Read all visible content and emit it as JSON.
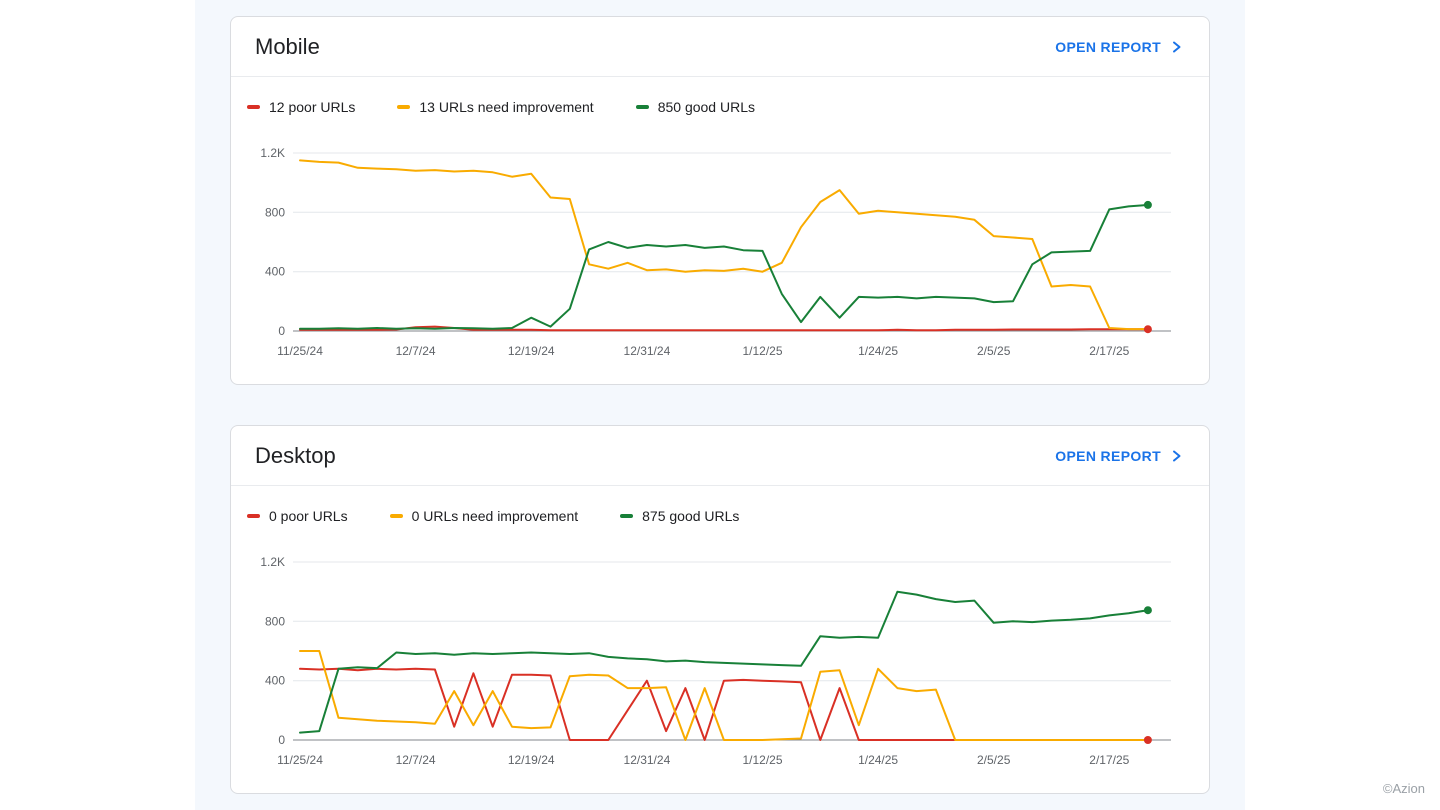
{
  "page": {
    "watermark": "©Azion"
  },
  "colors": {
    "poor": "#d93025",
    "improvement": "#f9ab00",
    "good": "#188038",
    "link": "#1a73e8"
  },
  "cards": [
    {
      "title": "Mobile",
      "open_report": "OPEN REPORT",
      "legend": [
        {
          "label": "12 poor URLs",
          "color": "#d93025"
        },
        {
          "label": "13 URLs need improvement",
          "color": "#f9ab00"
        },
        {
          "label": "850 good URLs",
          "color": "#188038"
        }
      ]
    },
    {
      "title": "Desktop",
      "open_report": "OPEN REPORT",
      "legend": [
        {
          "label": "0 poor URLs",
          "color": "#d93025"
        },
        {
          "label": "0 URLs need improvement",
          "color": "#f9ab00"
        },
        {
          "label": "875 good URLs",
          "color": "#188038"
        }
      ]
    }
  ],
  "chart_data": [
    {
      "type": "line",
      "title": "Mobile",
      "grid": true,
      "legend_position": "top",
      "ylim": [
        0,
        1200
      ],
      "yticks": [
        {
          "value": 0,
          "label": "0"
        },
        {
          "value": 400,
          "label": "400"
        },
        {
          "value": 800,
          "label": "800"
        },
        {
          "value": 1200,
          "label": "1.2K"
        }
      ],
      "xticks": [
        {
          "index": 0,
          "label": "11/25/24"
        },
        {
          "index": 6,
          "label": "12/7/24"
        },
        {
          "index": 12,
          "label": "12/19/24"
        },
        {
          "index": 18,
          "label": "12/31/24"
        },
        {
          "index": 24,
          "label": "1/12/25"
        },
        {
          "index": 30,
          "label": "1/24/25"
        },
        {
          "index": 36,
          "label": "2/5/25"
        },
        {
          "index": 42,
          "label": "2/17/25"
        }
      ],
      "series": [
        {
          "name": "poor URLs",
          "color": "#d93025",
          "final_value": 12,
          "end_dot": true,
          "values": [
            8,
            8,
            8,
            8,
            8,
            10,
            25,
            30,
            20,
            8,
            8,
            8,
            8,
            5,
            5,
            5,
            5,
            5,
            5,
            5,
            5,
            5,
            5,
            5,
            5,
            5,
            5,
            5,
            5,
            5,
            5,
            8,
            5,
            5,
            8,
            8,
            8,
            10,
            10,
            10,
            10,
            12,
            12,
            12,
            12
          ]
        },
        {
          "name": "URLs need improvement",
          "color": "#f9ab00",
          "final_value": 13,
          "end_dot": false,
          "values": [
            1150,
            1140,
            1135,
            1100,
            1095,
            1090,
            1080,
            1085,
            1075,
            1080,
            1070,
            1040,
            1060,
            900,
            890,
            450,
            420,
            460,
            410,
            415,
            400,
            410,
            405,
            420,
            400,
            460,
            700,
            870,
            950,
            790,
            810,
            800,
            790,
            780,
            770,
            750,
            640,
            630,
            620,
            300,
            310,
            300,
            20,
            13,
            13
          ]
        },
        {
          "name": "good URLs",
          "color": "#188038",
          "final_value": 850,
          "end_dot": true,
          "values": [
            15,
            15,
            18,
            15,
            20,
            15,
            18,
            15,
            20,
            18,
            15,
            20,
            90,
            30,
            150,
            550,
            600,
            560,
            580,
            570,
            580,
            560,
            570,
            545,
            540,
            250,
            60,
            230,
            90,
            230,
            225,
            230,
            220,
            230,
            225,
            220,
            195,
            200,
            450,
            530,
            535,
            540,
            820,
            840,
            850
          ]
        }
      ]
    },
    {
      "type": "line",
      "title": "Desktop",
      "grid": true,
      "legend_position": "top",
      "ylim": [
        0,
        1200
      ],
      "yticks": [
        {
          "value": 0,
          "label": "0"
        },
        {
          "value": 400,
          "label": "400"
        },
        {
          "value": 800,
          "label": "800"
        },
        {
          "value": 1200,
          "label": "1.2K"
        }
      ],
      "xticks": [
        {
          "index": 0,
          "label": "11/25/24"
        },
        {
          "index": 6,
          "label": "12/7/24"
        },
        {
          "index": 12,
          "label": "12/19/24"
        },
        {
          "index": 18,
          "label": "12/31/24"
        },
        {
          "index": 24,
          "label": "1/12/25"
        },
        {
          "index": 30,
          "label": "1/24/25"
        },
        {
          "index": 36,
          "label": "2/5/25"
        },
        {
          "index": 42,
          "label": "2/17/25"
        }
      ],
      "series": [
        {
          "name": "poor URLs",
          "color": "#d93025",
          "final_value": 0,
          "end_dot": true,
          "values": [
            480,
            475,
            480,
            470,
            480,
            475,
            480,
            475,
            90,
            450,
            90,
            440,
            440,
            435,
            0,
            0,
            0,
            200,
            400,
            60,
            350,
            0,
            400,
            405,
            400,
            395,
            390,
            0,
            350,
            0,
            0,
            0,
            0,
            0,
            0,
            0,
            0,
            0,
            0,
            0,
            0,
            0,
            0,
            0,
            0
          ]
        },
        {
          "name": "URLs need improvement",
          "color": "#f9ab00",
          "final_value": 0,
          "end_dot": false,
          "values": [
            600,
            600,
            150,
            140,
            130,
            125,
            120,
            110,
            330,
            100,
            330,
            90,
            80,
            85,
            430,
            440,
            435,
            350,
            350,
            355,
            0,
            350,
            0,
            0,
            0,
            5,
            10,
            460,
            470,
            100,
            480,
            350,
            330,
            340,
            0,
            0,
            0,
            0,
            0,
            0,
            0,
            0,
            0,
            0,
            0
          ]
        },
        {
          "name": "good URLs",
          "color": "#188038",
          "final_value": 875,
          "end_dot": true,
          "values": [
            50,
            60,
            480,
            490,
            485,
            590,
            580,
            585,
            575,
            585,
            580,
            585,
            590,
            585,
            580,
            585,
            560,
            550,
            545,
            530,
            535,
            525,
            520,
            515,
            510,
            505,
            500,
            700,
            690,
            695,
            690,
            1000,
            980,
            950,
            930,
            940,
            790,
            800,
            795,
            805,
            810,
            820,
            840,
            855,
            875
          ]
        }
      ]
    }
  ]
}
